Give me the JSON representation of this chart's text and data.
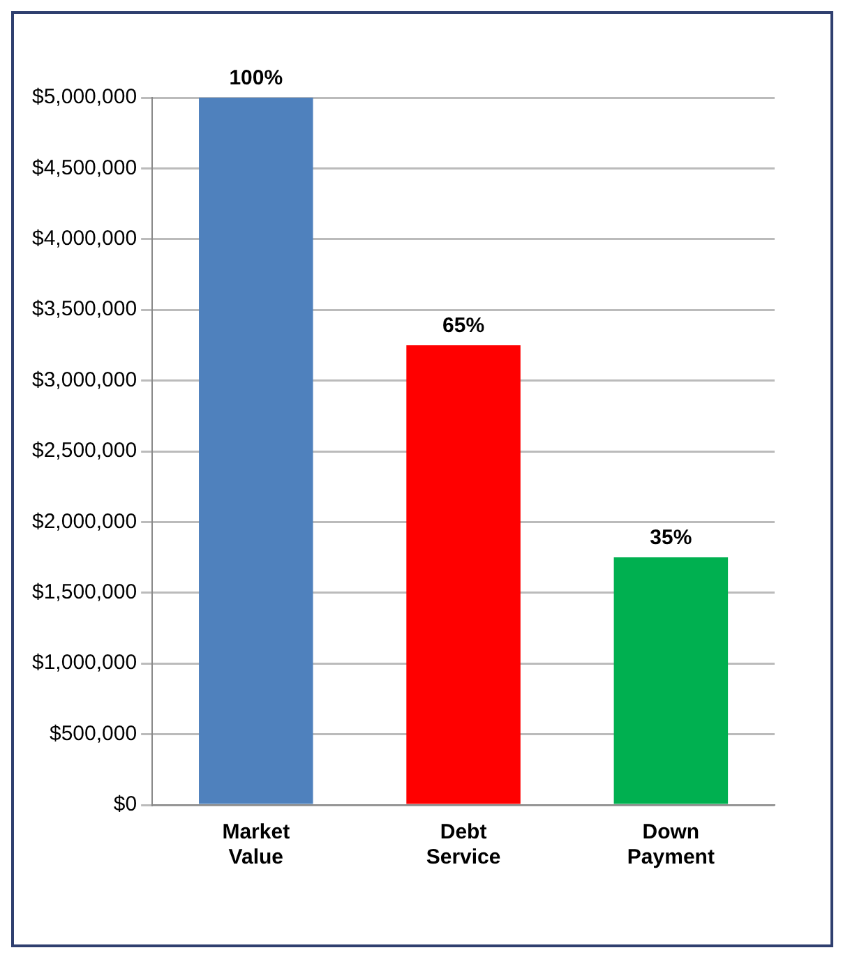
{
  "chart_data": {
    "type": "bar",
    "categories": [
      "Market Value",
      "Debt Service",
      "Down Payment"
    ],
    "values": [
      5000000,
      3250000,
      1750000
    ],
    "colors": [
      "#4f81bd",
      "#ff0000",
      "#00b050"
    ],
    "annotations": [
      {
        "text": "100%",
        "x": "Market Value",
        "y": 5000000
      },
      {
        "text": "65%",
        "x": "Debt Service",
        "y": 3250000
      },
      {
        "text": "35%",
        "x": "Down Payment",
        "y": 1750000
      }
    ],
    "ylim": [
      0,
      5000000
    ],
    "yticks": [
      {
        "value": 0,
        "label": "$0"
      },
      {
        "value": 500000,
        "label": "$500,000"
      },
      {
        "value": 1000000,
        "label": "$1,000,000"
      },
      {
        "value": 1500000,
        "label": "$1,500,000"
      },
      {
        "value": 2000000,
        "label": "$2,000,000"
      },
      {
        "value": 2500000,
        "label": "$2,500,000"
      },
      {
        "value": 3000000,
        "label": "$3,000,000"
      },
      {
        "value": 3500000,
        "label": "$3,500,000"
      },
      {
        "value": 4000000,
        "label": "$4,000,000"
      },
      {
        "value": 4500000,
        "label": "$4,500,000"
      },
      {
        "value": 5000000,
        "label": "$5,000,000"
      }
    ],
    "grid": "y",
    "legend": false
  }
}
